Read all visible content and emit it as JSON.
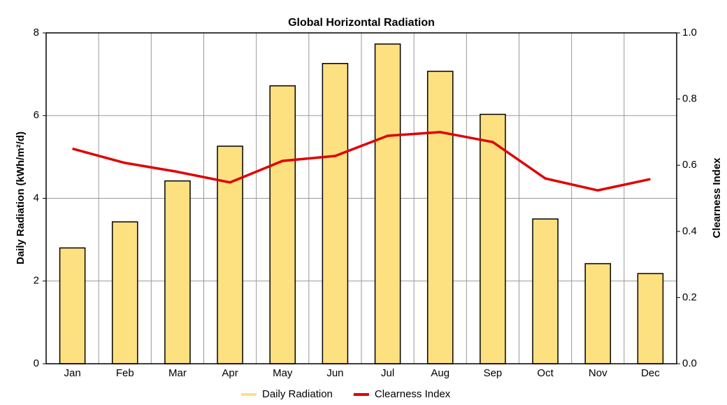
{
  "chart_data": {
    "type": "bar_line",
    "title": "Global Horizontal Radiation",
    "y_label": "Daily Radiation (kWh/m²/d)",
    "y2_label": "Clearness Index",
    "categories": [
      "Jan",
      "Feb",
      "Mar",
      "Apr",
      "May",
      "Jun",
      "Jul",
      "Aug",
      "Sep",
      "Oct",
      "Nov",
      "Dec"
    ],
    "series": [
      {
        "name": "Daily Radiation",
        "type": "bar",
        "color": "#fde080",
        "values": [
          2.8,
          3.43,
          4.42,
          5.26,
          6.72,
          7.26,
          7.73,
          7.07,
          6.03,
          3.5,
          2.42,
          2.18
        ]
      },
      {
        "name": "Clearness Index",
        "type": "line",
        "axis": "y2",
        "color": "#e00000",
        "values": [
          0.65,
          0.607,
          0.58,
          0.548,
          0.613,
          0.628,
          0.689,
          0.7,
          0.67,
          0.56,
          0.524,
          0.558
        ]
      }
    ],
    "ylim": [
      0,
      8
    ],
    "yticks": [
      0,
      2,
      4,
      6,
      8
    ],
    "y2lim": [
      0,
      1
    ],
    "y2ticks": [
      {
        "value": 0,
        "label": "0.0"
      },
      0.2,
      0.4,
      0.6,
      0.8,
      {
        "value": 1,
        "label": "1.0"
      }
    ],
    "grid": true,
    "legend": "bottom"
  }
}
